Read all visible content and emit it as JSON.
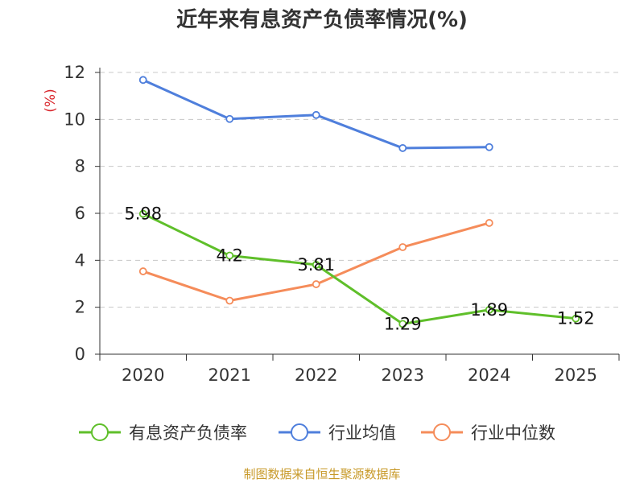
{
  "chart_data": {
    "type": "line",
    "title": "近年来有息资产负债率情况(%)",
    "ylabel": "(%)",
    "categories": [
      "2020",
      "2021",
      "2022",
      "2023",
      "2024",
      "2025"
    ],
    "ylim": [
      0,
      12
    ],
    "yticks": [
      0,
      2,
      4,
      6,
      8,
      10,
      12
    ],
    "grid": "horizontal-dashed",
    "legend_position": "bottom",
    "series": [
      {
        "name": "有息资产负债率",
        "color": "#5fbf2a",
        "values": [
          5.98,
          4.2,
          3.81,
          1.29,
          1.89,
          1.52
        ],
        "labels": [
          "5.98",
          "4.2",
          "3.81",
          "1.29",
          "1.89",
          "1.52"
        ]
      },
      {
        "name": "行业均值",
        "color": "#4f7fdc",
        "values": [
          11.68,
          10.02,
          10.19,
          8.78,
          8.82,
          null
        ]
      },
      {
        "name": "行业中位数",
        "color": "#f58c5a",
        "values": [
          3.53,
          2.28,
          2.98,
          4.56,
          5.59,
          null
        ]
      }
    ]
  },
  "footer": {
    "source": "制图数据来自恒生聚源数据库"
  }
}
